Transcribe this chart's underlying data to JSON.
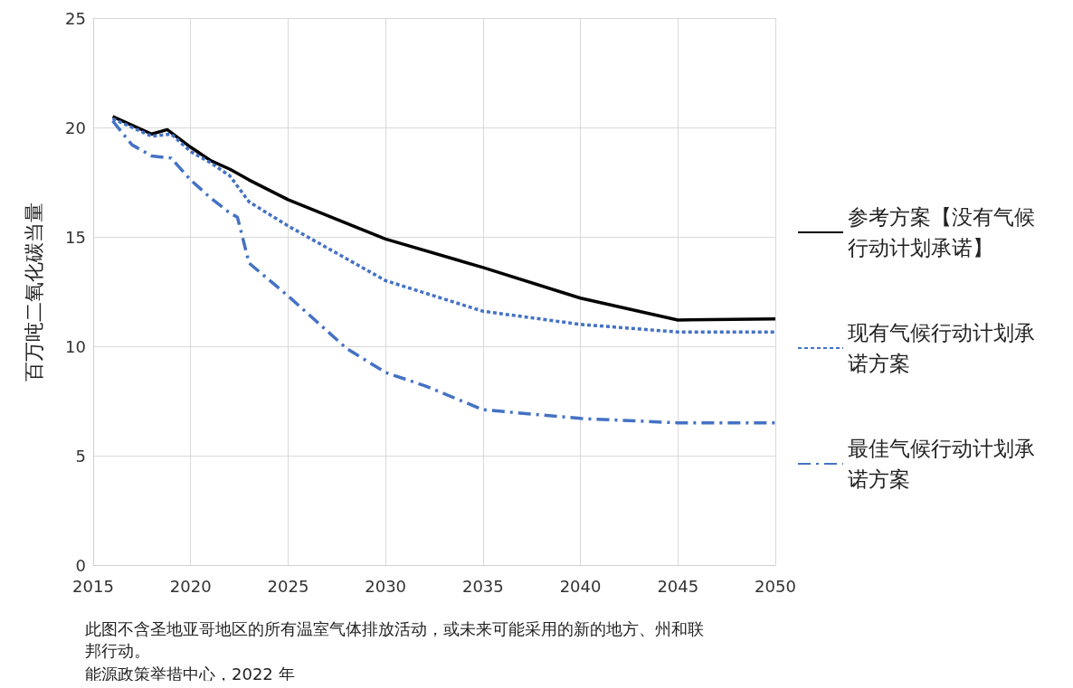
{
  "chart_data": {
    "type": "line",
    "ylabel": "百万吨二氧化碳当量",
    "xlim": [
      2015,
      2050
    ],
    "xticks": [
      2015,
      2020,
      2025,
      2030,
      2035,
      2040,
      2045,
      2050
    ],
    "ylim": [
      0,
      25
    ],
    "yticks": [
      0,
      5,
      10,
      15,
      20,
      25
    ],
    "grid": true,
    "legend": "right",
    "marker": "none",
    "series": [
      {
        "name": "参考方案【没有气候行动计划承诺】",
        "color": "#000000",
        "line_style": "solid",
        "x": [
          2016,
          2017,
          2018,
          2018.8,
          2020,
          2021,
          2022,
          2023,
          2025,
          2030,
          2035,
          2040,
          2045,
          2050
        ],
        "values": [
          20.5,
          20.1,
          19.7,
          19.9,
          19.1,
          18.5,
          18.1,
          17.6,
          16.7,
          14.9,
          13.6,
          12.2,
          11.2,
          11.25
        ]
      },
      {
        "name": "现有气候行动计划承诺方案",
        "color": "#4472c4",
        "line_style": "dashed",
        "x": [
          2016,
          2017,
          2018,
          2019,
          2020,
          2021,
          2022,
          2023,
          2025,
          2030,
          2035,
          2040,
          2045,
          2050
        ],
        "values": [
          20.4,
          20.0,
          19.6,
          19.7,
          18.9,
          18.4,
          17.8,
          16.6,
          15.5,
          13.0,
          11.6,
          11.0,
          10.65,
          10.65
        ]
      },
      {
        "name": "最佳气候行动计划承诺方案",
        "color": "#4472c4",
        "line_style": "dashdot",
        "x": [
          2016,
          2017,
          2018,
          2019,
          2020,
          2021,
          2022,
          2022.4,
          2023,
          2025,
          2028,
          2030,
          2032,
          2035,
          2040,
          2045,
          2050
        ],
        "values": [
          20.3,
          19.2,
          18.7,
          18.6,
          17.6,
          16.8,
          16.1,
          15.9,
          13.8,
          12.3,
          9.9,
          8.8,
          8.2,
          7.1,
          6.7,
          6.5,
          6.5
        ]
      }
    ],
    "annotations": [
      "此图不含圣地亚哥地区的所有温室气体排放活动，或未来可能采用的新的地方、州和联邦行动。",
      "能源政策举措中心，2022 年"
    ]
  }
}
